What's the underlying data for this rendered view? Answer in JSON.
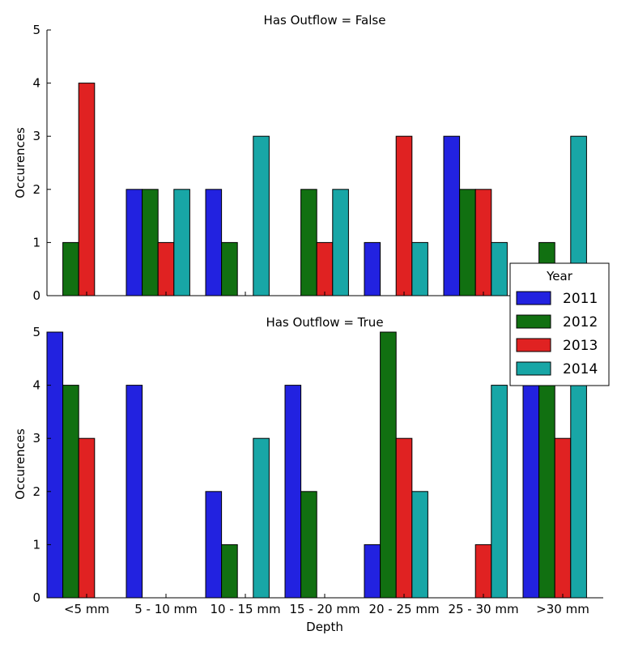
{
  "colors": {
    "2011": "#2222e0",
    "2012": "#117011",
    "2013": "#e02222",
    "2014": "#18a6a6"
  },
  "legend": {
    "title": "Year",
    "entries": [
      "2011",
      "2012",
      "2013",
      "2014"
    ],
    "placement": "right, between panels"
  },
  "chart_data": [
    {
      "type": "bar",
      "title": "Has Outflow = False",
      "xlabel": "",
      "ylabel": "Occurences",
      "ylim": [
        0,
        5
      ],
      "yticks": [
        "0",
        "1",
        "2",
        "3",
        "4",
        "5"
      ],
      "categories": [
        "<5 mm",
        "5 - 10 mm",
        "10 - 15 mm",
        "15 - 20 mm",
        "20 - 25 mm",
        "25 - 30 mm",
        ">30 mm"
      ],
      "show_xtick_labels": false,
      "series": [
        {
          "name": "2011",
          "values": [
            0,
            2,
            2,
            0,
            1,
            3,
            0
          ]
        },
        {
          "name": "2012",
          "values": [
            1,
            2,
            1,
            2,
            0,
            2,
            1
          ]
        },
        {
          "name": "2013",
          "values": [
            4,
            1,
            0,
            1,
            3,
            2,
            0
          ]
        },
        {
          "name": "2014",
          "values": [
            0,
            2,
            3,
            2,
            1,
            1,
            3
          ]
        }
      ]
    },
    {
      "type": "bar",
      "title": "Has Outflow = True",
      "xlabel": "Depth",
      "ylabel": "Occurences",
      "ylim": [
        0,
        5
      ],
      "yticks": [
        "0",
        "1",
        "2",
        "3",
        "4",
        "5"
      ],
      "categories": [
        "<5 mm",
        "5 - 10 mm",
        "10 - 15 mm",
        "15 - 20 mm",
        "20 - 25 mm",
        "25 - 30 mm",
        ">30 mm"
      ],
      "show_xtick_labels": true,
      "series": [
        {
          "name": "2011",
          "values": [
            5,
            4,
            2,
            4,
            1,
            0,
            4
          ]
        },
        {
          "name": "2012",
          "values": [
            4,
            0,
            1,
            2,
            5,
            0,
            4
          ]
        },
        {
          "name": "2013",
          "values": [
            3,
            0,
            0,
            0,
            3,
            1,
            3
          ]
        },
        {
          "name": "2014",
          "values": [
            0,
            0,
            3,
            0,
            2,
            4,
            4
          ]
        }
      ]
    }
  ]
}
